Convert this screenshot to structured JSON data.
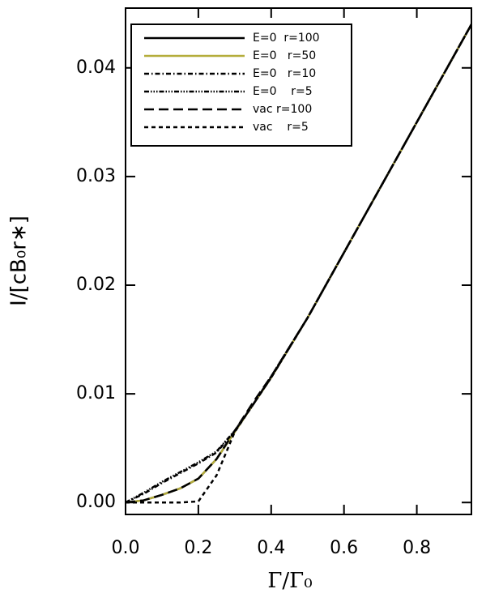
{
  "chart_data": {
    "type": "line",
    "xlabel": "Γ/Γ₀",
    "ylabel": "I/[cB₀r∗]",
    "x": [
      0,
      0.05,
      0.1,
      0.15,
      0.2,
      0.25,
      0.3,
      0.35,
      0.4,
      0.5,
      0.6,
      0.7,
      0.8,
      0.9,
      0.95
    ],
    "series": [
      {
        "name": "E=0  r=100",
        "color": "#000000",
        "style": "solid",
        "values": [
          0,
          0.0002,
          0.0007,
          0.0013,
          0.0022,
          0.004,
          0.0065,
          0.009,
          0.0115,
          0.017,
          0.023,
          0.029,
          0.035,
          0.041,
          0.044
        ]
      },
      {
        "name": "E=0   r=50",
        "color": "#b5ad3c",
        "style": "solid",
        "values": [
          0,
          0.0002,
          0.0007,
          0.0013,
          0.0022,
          0.004,
          0.0065,
          0.009,
          0.0115,
          0.017,
          0.023,
          0.029,
          0.035,
          0.041,
          0.044
        ]
      },
      {
        "name": "E=0   r=10",
        "color": "#000000",
        "style": "dashdot",
        "values": [
          0,
          0.0008,
          0.0018,
          0.0027,
          0.0036,
          0.0046,
          0.0066,
          0.009,
          0.0115,
          0.017,
          0.023,
          0.029,
          0.035,
          0.041,
          0.044
        ]
      },
      {
        "name": "E=0    r=5",
        "color": "#000000",
        "style": "dashdotdot",
        "values": [
          0,
          0.0009,
          0.0019,
          0.0028,
          0.0037,
          0.0047,
          0.0066,
          0.009,
          0.0116,
          0.017,
          0.023,
          0.029,
          0.035,
          0.041,
          0.044
        ]
      },
      {
        "name": "vac r=100",
        "color": "#000000",
        "style": "longdash",
        "values": [
          0,
          0.0002,
          0.0007,
          0.0013,
          0.0022,
          0.004,
          0.0066,
          0.0092,
          0.0116,
          0.017,
          0.023,
          0.029,
          0.035,
          0.041,
          0.044
        ]
      },
      {
        "name": "vac    r=5",
        "color": "#000000",
        "style": "dash",
        "values": [
          0,
          0,
          0,
          0,
          0.0001,
          0.0025,
          0.0065,
          0.009,
          0.0115,
          0.017,
          0.023,
          0.029,
          0.035,
          0.041,
          0.044
        ]
      }
    ],
    "xlim": [
      0,
      0.95
    ],
    "ylim": [
      -0.0011,
      0.0455
    ],
    "xticks": [
      {
        "value": 0,
        "label": "0.0"
      },
      0.2,
      0.4,
      0.6,
      0.8
    ],
    "yticks": [
      {
        "value": 0,
        "label": "0.00"
      },
      0.01,
      0.02,
      0.03,
      0.04
    ],
    "legend": "upper left"
  }
}
